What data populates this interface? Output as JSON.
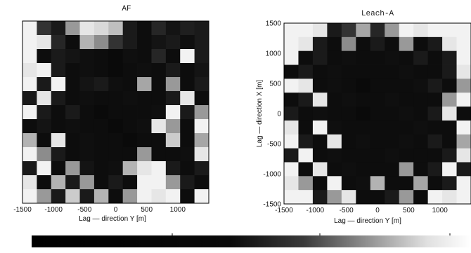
{
  "chart_data": [
    {
      "type": "heatmap",
      "title": "AF",
      "xlabel": "Lag — direction Y [m]",
      "ylabel": "",
      "xlim": [
        -1500,
        1500
      ],
      "ylim": [
        -1500,
        1500
      ],
      "xticks": [
        "-1500",
        "-1000",
        "-500",
        "0",
        "500",
        "1000"
      ],
      "yticks": [],
      "grid_rows": 13,
      "grid_cols": 13,
      "colormap": "grayscale (black = low, white = high)",
      "values": [
        [
          0.95,
          0.2,
          0.1,
          0.6,
          0.9,
          0.85,
          0.75,
          0.1,
          0.05,
          0.15,
          0.08,
          0.12,
          0.1
        ],
        [
          0.95,
          0.9,
          0.15,
          0.05,
          0.7,
          0.55,
          0.2,
          0.1,
          0.05,
          0.08,
          0.1,
          0.06,
          0.1
        ],
        [
          0.95,
          0.05,
          0.1,
          0.08,
          0.06,
          0.05,
          0.04,
          0.06,
          0.05,
          0.15,
          0.05,
          0.95,
          0.1
        ],
        [
          0.9,
          0.95,
          0.1,
          0.05,
          0.06,
          0.05,
          0.04,
          0.05,
          0.06,
          0.05,
          0.1,
          0.05,
          0.08
        ],
        [
          0.95,
          0.1,
          0.95,
          0.05,
          0.08,
          0.1,
          0.06,
          0.05,
          0.65,
          0.05,
          0.6,
          0.05,
          0.1
        ],
        [
          0.1,
          0.9,
          0.1,
          0.05,
          0.06,
          0.05,
          0.05,
          0.06,
          0.05,
          0.05,
          0.1,
          0.9,
          0.05
        ],
        [
          0.95,
          0.1,
          0.05,
          0.1,
          0.05,
          0.04,
          0.05,
          0.05,
          0.05,
          0.06,
          0.95,
          0.1,
          0.6
        ],
        [
          0.05,
          0.08,
          0.05,
          0.06,
          0.05,
          0.05,
          0.04,
          0.05,
          0.06,
          0.9,
          0.6,
          0.05,
          0.95
        ],
        [
          0.7,
          0.05,
          0.9,
          0.05,
          0.06,
          0.05,
          0.05,
          0.04,
          0.05,
          0.05,
          0.8,
          0.05,
          0.65
        ],
        [
          0.95,
          0.55,
          0.1,
          0.05,
          0.06,
          0.05,
          0.05,
          0.05,
          0.6,
          0.05,
          0.05,
          0.06,
          0.9
        ],
        [
          0.1,
          0.95,
          0.05,
          0.6,
          0.08,
          0.05,
          0.06,
          0.7,
          0.9,
          0.95,
          0.1,
          0.05,
          0.1
        ],
        [
          0.9,
          0.05,
          0.7,
          0.1,
          0.6,
          0.05,
          0.1,
          0.05,
          0.95,
          0.95,
          0.6,
          0.1,
          0.05
        ],
        [
          0.95,
          0.6,
          0.1,
          0.8,
          0.1,
          0.7,
          0.05,
          0.6,
          0.95,
          0.9,
          0.95,
          0.05,
          0.95
        ]
      ]
    },
    {
      "type": "heatmap",
      "title": "Leach-A",
      "xlabel": "Lag — direction Y [m]",
      "ylabel": "Lag — direction X [m]",
      "xlim": [
        -1500,
        1500
      ],
      "ylim": [
        -1500,
        1500
      ],
      "xticks": [
        "-1500",
        "-1000",
        "-500",
        "0",
        "500",
        "1000"
      ],
      "yticks": [
        "1500",
        "1000",
        "500",
        "0",
        "-500",
        "-1000",
        "-1500"
      ],
      "grid_rows": 13,
      "grid_cols": 13,
      "colormap": "grayscale (black = low, white = high)",
      "values": [
        [
          0.95,
          0.95,
          0.9,
          0.1,
          0.2,
          0.65,
          0.15,
          0.6,
          0.95,
          0.9,
          0.95,
          0.95,
          0.95
        ],
        [
          0.95,
          0.9,
          0.1,
          0.05,
          0.55,
          0.05,
          0.1,
          0.05,
          0.6,
          0.05,
          0.1,
          0.9,
          0.95
        ],
        [
          0.95,
          0.05,
          0.1,
          0.05,
          0.06,
          0.05,
          0.05,
          0.06,
          0.05,
          0.1,
          0.05,
          0.1,
          0.95
        ],
        [
          0.05,
          0.1,
          0.05,
          0.06,
          0.05,
          0.05,
          0.05,
          0.05,
          0.06,
          0.05,
          0.05,
          0.1,
          0.9
        ],
        [
          0.95,
          0.9,
          0.05,
          0.06,
          0.05,
          0.04,
          0.05,
          0.05,
          0.05,
          0.06,
          0.1,
          0.05,
          0.6
        ],
        [
          0.05,
          0.1,
          0.9,
          0.05,
          0.06,
          0.05,
          0.05,
          0.06,
          0.05,
          0.05,
          0.05,
          0.6,
          0.95
        ],
        [
          0.1,
          0.05,
          0.06,
          0.05,
          0.05,
          0.04,
          0.05,
          0.05,
          0.06,
          0.05,
          0.1,
          0.9,
          0.05
        ],
        [
          0.9,
          0.05,
          0.95,
          0.06,
          0.05,
          0.05,
          0.05,
          0.05,
          0.05,
          0.06,
          0.05,
          0.05,
          0.95
        ],
        [
          0.95,
          0.1,
          0.05,
          0.9,
          0.05,
          0.06,
          0.05,
          0.05,
          0.06,
          0.05,
          0.1,
          0.05,
          0.65
        ],
        [
          0.1,
          0.95,
          0.05,
          0.06,
          0.05,
          0.05,
          0.05,
          0.06,
          0.05,
          0.05,
          0.05,
          0.1,
          0.9
        ],
        [
          0.95,
          0.05,
          0.9,
          0.05,
          0.06,
          0.05,
          0.05,
          0.05,
          0.6,
          0.05,
          0.1,
          0.95,
          0.1
        ],
        [
          0.9,
          0.6,
          0.05,
          0.95,
          0.05,
          0.06,
          0.7,
          0.05,
          0.05,
          0.65,
          0.05,
          0.1,
          0.95
        ],
        [
          0.95,
          0.95,
          0.1,
          0.6,
          0.9,
          0.05,
          0.05,
          0.1,
          0.6,
          0.05,
          0.95,
          0.9,
          0.95
        ]
      ]
    }
  ],
  "colorbar": {
    "colormap": "grayscale (black = low, white = high)"
  }
}
